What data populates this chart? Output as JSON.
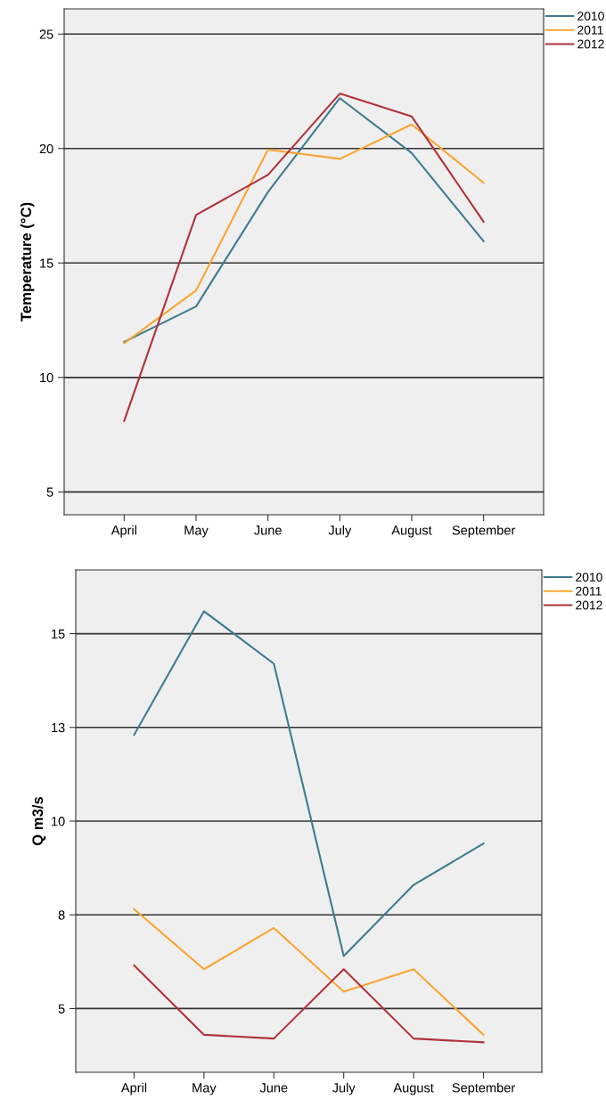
{
  "chart_data": [
    {
      "type": "line",
      "ylabel": "Temperature (°C)",
      "categories": [
        "April",
        "May",
        "June",
        "July",
        "August",
        "September"
      ],
      "series": [
        {
          "name": "2010",
          "color": "#3e7b8e",
          "values": [
            11.55,
            13.1,
            18.1,
            22.2,
            19.8,
            15.95
          ]
        },
        {
          "name": "2011",
          "color": "#f9a533",
          "values": [
            11.5,
            13.8,
            19.95,
            19.55,
            21.05,
            18.5
          ]
        },
        {
          "name": "2012",
          "color": "#b0323a",
          "values": [
            8.1,
            17.1,
            18.85,
            22.4,
            21.4,
            16.8
          ]
        }
      ],
      "ylim": [
        4,
        26.1
      ],
      "yticks": [
        5,
        10,
        15,
        20,
        25
      ],
      "grid": "y",
      "legend": "top right"
    },
    {
      "type": "line",
      "ylabel": "Q m3/s",
      "categories": [
        "April",
        "May",
        "June",
        "July",
        "August",
        "September"
      ],
      "series": [
        {
          "name": "2010",
          "color": "#3e7b8e",
          "values": [
            12.3,
            15.6,
            14.2,
            6.4,
            8.3,
            9.4
          ]
        },
        {
          "name": "2011",
          "color": "#f9a533",
          "values": [
            7.65,
            6.05,
            7.15,
            5.45,
            6.05,
            4.3
          ]
        },
        {
          "name": "2012",
          "color": "#b0323a",
          "values": [
            6.15,
            4.3,
            4.2,
            6.05,
            4.2,
            4.1
          ]
        }
      ],
      "ylim": [
        3.3,
        16.7
      ],
      "yticks": [
        5,
        {
          "value": 7.5,
          "label": "8"
        },
        10,
        {
          "value": 12.5,
          "label": "13"
        },
        15
      ],
      "grid": "y",
      "legend": "top right"
    }
  ]
}
